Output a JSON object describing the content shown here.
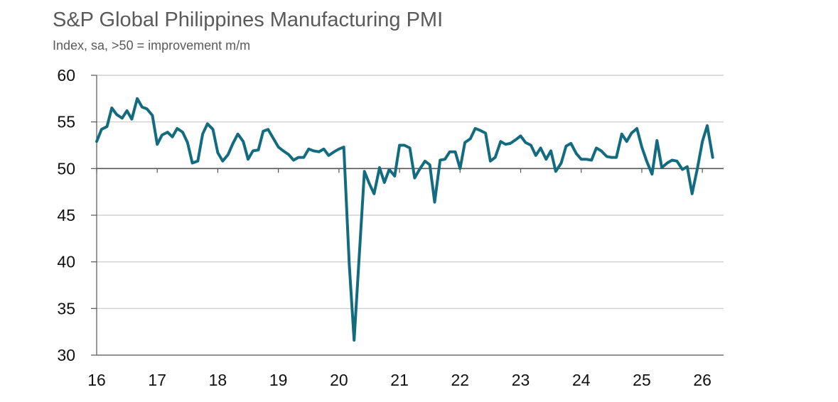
{
  "header": {
    "title": "S&P Global Philippines Manufacturing PMI",
    "subtitle": "Index, sa, >50 = improvement m/m"
  },
  "colors": {
    "line": "#136b80",
    "grid": "#c8c8c8",
    "axis": "#555555",
    "text": "#111111"
  },
  "chart_data": {
    "type": "line",
    "title": "S&P Global Philippines Manufacturing PMI",
    "subtitle": "Index, sa, >50 = improvement m/m",
    "xlabel": "",
    "ylabel": "",
    "ylim": [
      30,
      60
    ],
    "yticks": [
      30,
      35,
      40,
      45,
      50,
      55,
      60
    ],
    "xticks": [
      {
        "label": "16",
        "x": 2016
      },
      {
        "label": "17",
        "x": 2017
      },
      {
        "label": "18",
        "x": 2018
      },
      {
        "label": "19",
        "x": 2019
      },
      {
        "label": "20",
        "x": 2020
      },
      {
        "label": "21",
        "x": 2021
      },
      {
        "label": "22",
        "x": 2022
      },
      {
        "label": "23",
        "x": 2023
      },
      {
        "label": "24",
        "x": 2024
      },
      {
        "label": "25",
        "x": 2025
      },
      {
        "label": "26",
        "x": 2026
      }
    ],
    "xlim": [
      2016,
      2026.35
    ],
    "reference_line": 50,
    "grid": true,
    "series": [
      {
        "x": [
          2016.0,
          2016.08,
          2016.17,
          2016.25,
          2016.33,
          2016.42,
          2016.5,
          2016.58,
          2016.67,
          2016.75,
          2016.83,
          2016.92,
          2017.0,
          2017.08,
          2017.17,
          2017.25,
          2017.33,
          2017.42,
          2017.5,
          2017.58,
          2017.67,
          2017.75,
          2017.83,
          2017.92,
          2018.0,
          2018.08,
          2018.17,
          2018.25,
          2018.33,
          2018.42,
          2018.5,
          2018.58,
          2018.67,
          2018.75,
          2018.83,
          2018.92,
          2019.0,
          2019.08,
          2019.17,
          2019.25,
          2019.33,
          2019.42,
          2019.5,
          2019.58,
          2019.67,
          2019.75,
          2019.83,
          2019.92,
          2020.0,
          2020.08,
          2020.17,
          2020.25,
          2020.33,
          2020.42,
          2020.5,
          2020.58,
          2020.67,
          2020.75,
          2020.83,
          2020.92,
          2021.0,
          2021.08,
          2021.17,
          2021.25,
          2021.33,
          2021.42,
          2021.5,
          2021.58,
          2021.67,
          2021.75,
          2021.83,
          2021.92,
          2022.0,
          2022.08,
          2022.17,
          2022.25,
          2022.33,
          2022.42,
          2022.5,
          2022.58,
          2022.67,
          2022.75,
          2022.83,
          2022.92,
          2023.0,
          2023.08,
          2023.17,
          2023.25,
          2023.33,
          2023.42,
          2023.5,
          2023.58,
          2023.67,
          2023.75,
          2023.83,
          2023.92,
          2024.0,
          2024.08,
          2024.17,
          2024.25,
          2024.33,
          2024.42,
          2024.5,
          2024.58,
          2024.67,
          2024.75,
          2024.83,
          2024.92,
          2025.0,
          2025.08,
          2025.17,
          2025.25,
          2025.33,
          2025.42,
          2025.5,
          2025.58,
          2025.67,
          2025.75,
          2025.83,
          2025.92,
          2026.0,
          2026.08,
          2026.17
        ],
        "values": [
          52.9,
          54.2,
          54.5,
          56.5,
          55.8,
          55.4,
          56.2,
          55.3,
          57.5,
          56.6,
          56.4,
          55.7,
          52.6,
          53.6,
          53.9,
          53.4,
          54.3,
          53.9,
          52.8,
          50.6,
          50.8,
          53.7,
          54.8,
          54.2,
          51.7,
          50.8,
          51.5,
          52.7,
          53.7,
          52.9,
          51.0,
          51.9,
          52.0,
          54.0,
          54.2,
          53.2,
          52.3,
          51.9,
          51.5,
          50.9,
          51.2,
          51.2,
          52.1,
          51.9,
          51.8,
          52.1,
          51.4,
          51.8,
          52.1,
          52.3,
          39.7,
          31.6,
          40.1,
          49.7,
          48.4,
          47.3,
          50.1,
          48.5,
          49.9,
          49.2,
          52.5,
          52.5,
          52.2,
          49.0,
          49.9,
          50.8,
          50.4,
          46.4,
          50.9,
          51.0,
          51.8,
          51.8,
          50.0,
          52.8,
          53.2,
          54.3,
          54.1,
          53.8,
          50.8,
          51.2,
          52.9,
          52.6,
          52.7,
          53.1,
          53.5,
          52.8,
          52.5,
          51.4,
          52.2,
          51.0,
          51.9,
          49.7,
          50.6,
          52.4,
          52.7,
          51.6,
          51.0,
          51.0,
          50.9,
          52.2,
          51.9,
          51.3,
          51.2,
          51.2,
          53.7,
          52.9,
          53.8,
          54.3,
          52.3,
          50.8,
          49.4,
          53.0,
          50.1,
          50.6,
          50.9,
          50.8,
          49.9,
          50.2,
          47.3,
          50.1,
          52.9,
          54.6,
          51.2
        ]
      }
    ]
  }
}
